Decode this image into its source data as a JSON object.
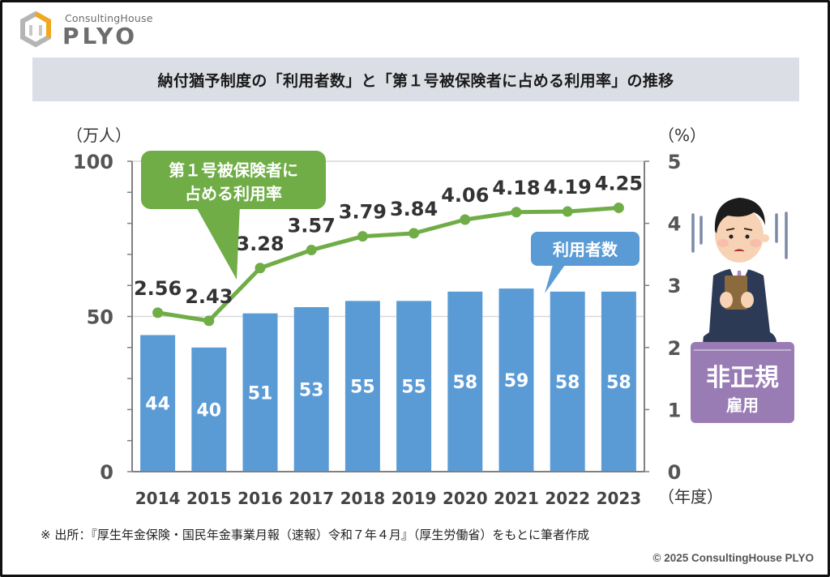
{
  "logo": {
    "small": "ConsultingHouse",
    "big": "PLYO",
    "icon": "hexagon-logo-icon",
    "colors": {
      "orange": "#f0a820",
      "gray": "#a9a9a9"
    }
  },
  "title": "納付猶予制度の「利用者数」と「第１号被保険者に占める利用率」の推移",
  "source_note": "※ 出所：『厚生年金保険・国民年金事業月報（速報）令和７年４月』（厚生労働省）をもとに筆者作成",
  "copyright": "© 2025 ConsultingHouse PLYO",
  "illustration": {
    "name": "worried-man-kneeling-icon",
    "label_line1": "非正規",
    "label_line2": "雇用",
    "sign_color": "#9a7cb5"
  },
  "colors": {
    "bar": "#5b9bd5",
    "line": "#70ad47",
    "axis": "#808080",
    "grid": "#d9d9d9",
    "tick_label": "#555555",
    "data_label": "#333333"
  },
  "chart_data": {
    "type": "bar+line",
    "title": "納付猶予制度の「利用者数」と「第１号被保険者に占める利用率」の推移",
    "categories": [
      "2014",
      "2015",
      "2016",
      "2017",
      "2018",
      "2019",
      "2020",
      "2021",
      "2022",
      "2023"
    ],
    "series": [
      {
        "name": "利用者数",
        "type": "bar",
        "axis": "left",
        "values": [
          44,
          40,
          51,
          53,
          55,
          55,
          58,
          59,
          58,
          58
        ]
      },
      {
        "name": "第１号被保険者に占める利用率",
        "type": "line",
        "axis": "right",
        "values": [
          2.56,
          2.43,
          3.28,
          3.57,
          3.79,
          3.84,
          4.06,
          4.18,
          4.19,
          4.25
        ]
      }
    ],
    "y_left": {
      "label": "（万人）",
      "ticks": [
        "0",
        "50",
        "100"
      ],
      "range": [
        0,
        100
      ],
      "minor_step": 10
    },
    "y_right": {
      "label": "（%）",
      "ticks": [
        "0",
        "1",
        "2",
        "3",
        "4",
        "5"
      ],
      "range": [
        0,
        5
      ]
    },
    "xlabel": "（年度）",
    "callouts": {
      "line": [
        "第１号被保険者に",
        "占める利用率"
      ],
      "bar": "利用者数"
    },
    "grid": "horizontal at 50",
    "legend": "callouts"
  }
}
